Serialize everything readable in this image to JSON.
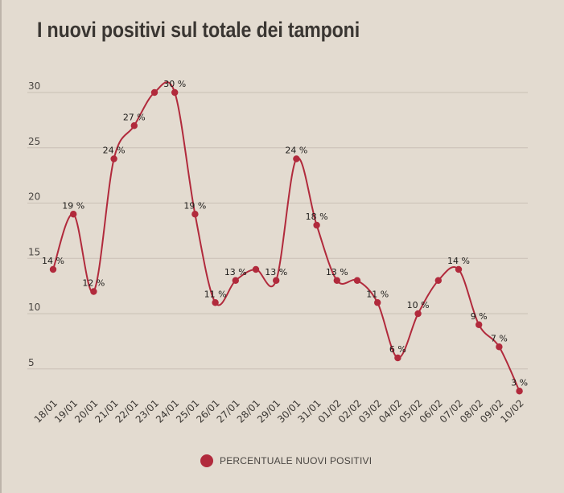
{
  "title": "I nuovi positivi sul totale dei tamponi",
  "colors": {
    "line": "#b12a3c",
    "grid": "#c9c0b5",
    "background": "#e3dbd0"
  },
  "chart_data": {
    "type": "line",
    "title": "I nuovi positivi sul totale dei tamponi",
    "xlabel": "",
    "ylabel": "",
    "categories": [
      "18/01",
      "19/01",
      "20/01",
      "21/01",
      "22/01",
      "23/01",
      "24/01",
      "25/01",
      "26/01",
      "27/01",
      "28/01",
      "29/01",
      "30/01",
      "31/01",
      "01/02",
      "02/02",
      "03/02",
      "04/02",
      "05/02",
      "06/02",
      "07/02",
      "08/02",
      "09/02",
      "10/02"
    ],
    "series": [
      {
        "name": "PERCENTUALE NUOVI POSITIVI",
        "values": [
          14,
          19,
          12,
          24,
          27,
          30,
          30,
          19,
          11,
          13,
          14,
          13,
          24,
          18,
          13,
          13,
          11,
          6,
          10,
          13,
          14,
          9,
          7,
          3
        ],
        "data_labels": [
          "14 %",
          "19 %",
          "12 %",
          "24 %",
          "27 %",
          "",
          "30 %",
          "19 %",
          "11 %",
          "13 %",
          "",
          "13 %",
          "24 %",
          "18 %",
          "13 %",
          "",
          "11 %",
          "6 %",
          "10 %",
          "",
          "14 %",
          "9 %",
          "7 %",
          "3 %"
        ]
      }
    ],
    "yticks": [
      5,
      10,
      15,
      20,
      25,
      30
    ],
    "ylim": [
      0,
      30
    ],
    "grid": true,
    "legend_position": "bottom"
  },
  "legend": {
    "label": "PERCENTUALE NUOVI POSITIVI"
  }
}
